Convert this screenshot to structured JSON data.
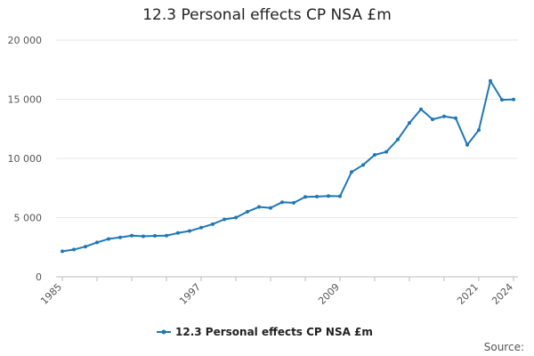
{
  "chart_data": {
    "type": "line",
    "title": "12.3 Personal effects CP NSA £m",
    "xlabel": "",
    "ylabel": "",
    "ylim": [
      0,
      20000
    ],
    "yticks": [
      0,
      5000,
      10000,
      15000,
      20000
    ],
    "ytick_labels": [
      "0",
      "5 000",
      "10 000",
      "15 000",
      "20 000"
    ],
    "xtick_labels": [
      "1985",
      "1997",
      "2009",
      "2021",
      "2024"
    ],
    "x": [
      1985,
      1986,
      1987,
      1988,
      1989,
      1990,
      1991,
      1992,
      1993,
      1994,
      1995,
      1996,
      1997,
      1998,
      1999,
      2000,
      2001,
      2002,
      2003,
      2004,
      2005,
      2006,
      2007,
      2008,
      2009,
      2010,
      2011,
      2012,
      2013,
      2014,
      2015,
      2016,
      2017,
      2018,
      2019,
      2020,
      2021,
      2022,
      2023,
      2024
    ],
    "series": [
      {
        "name": "12.3 Personal effects CP NSA £m",
        "color": "#1f77b4",
        "values": [
          2150,
          2300,
          2550,
          2900,
          3200,
          3330,
          3480,
          3420,
          3460,
          3480,
          3700,
          3870,
          4150,
          4450,
          4850,
          5000,
          5500,
          5900,
          5820,
          6300,
          6250,
          6750,
          6780,
          6820,
          6800,
          8850,
          9450,
          10300,
          10550,
          11600,
          13000,
          14150,
          13300,
          13550,
          13400,
          11150,
          12400,
          16550,
          14950,
          14980
        ]
      }
    ],
    "legend": {
      "position": "bottom"
    },
    "grid": true,
    "source_label": "Source:"
  }
}
